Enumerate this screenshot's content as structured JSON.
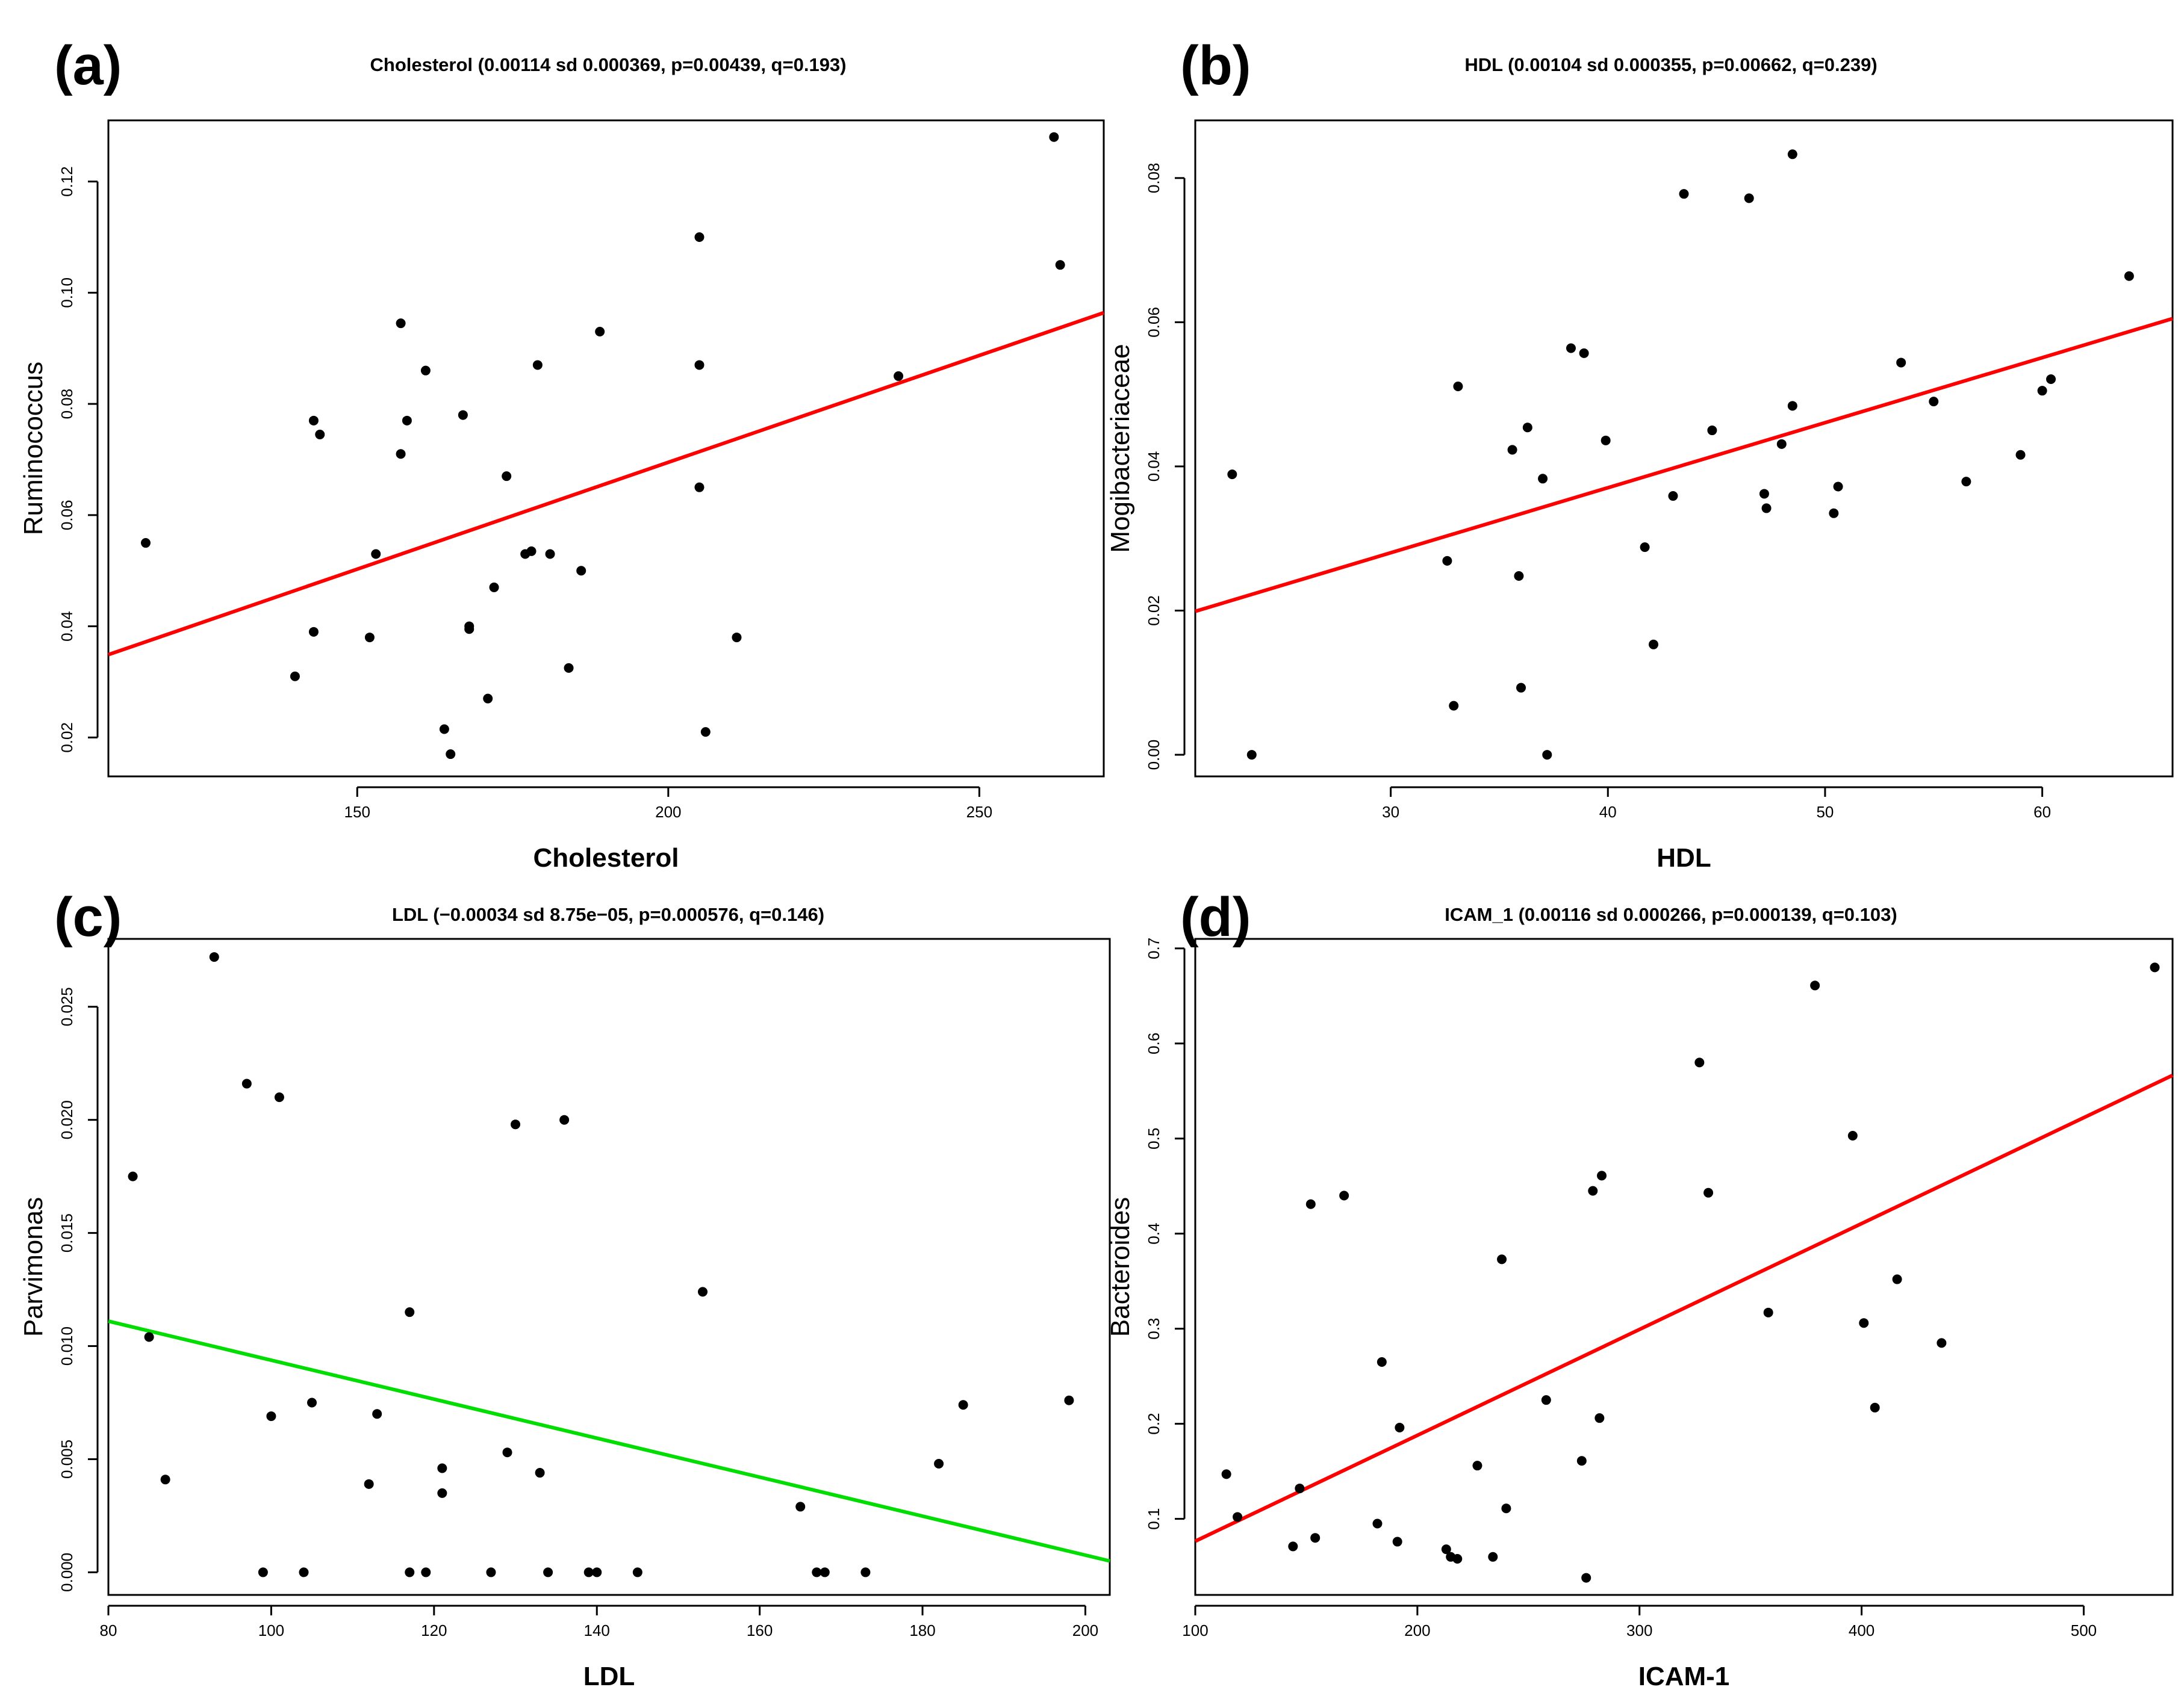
{
  "chart_data": [
    {
      "type": "scatter",
      "panel_letter": "(a)",
      "title": "Cholesterol (0.00114 sd 0.000369, p=0.00439, q=0.193)",
      "xlabel": "Cholesterol",
      "ylabel": "Ruminococcus",
      "xlim": [
        110,
        270
      ],
      "ylim": [
        0.013,
        0.131
      ],
      "xticks": [
        150,
        200,
        250
      ],
      "yticks": [
        0.02,
        0.04,
        0.06,
        0.08,
        0.1,
        0.12
      ],
      "xtick_labels": [
        "150",
        "200",
        "250"
      ],
      "ytick_labels": [
        "0.02",
        "0.04",
        "0.06",
        "0.08",
        "0.10",
        "0.12"
      ],
      "fit_line": {
        "x": [
          110,
          270
        ],
        "y": [
          0.0349,
          0.0964
        ],
        "color": "#ff0000"
      },
      "points": [
        [
          116,
          0.055
        ],
        [
          140,
          0.031
        ],
        [
          143,
          0.077
        ],
        [
          143,
          0.039
        ],
        [
          144,
          0.0745
        ],
        [
          152,
          0.038
        ],
        [
          153,
          0.053
        ],
        [
          157,
          0.0945
        ],
        [
          157,
          0.071
        ],
        [
          158,
          0.077
        ],
        [
          161,
          0.086
        ],
        [
          164,
          0.0215
        ],
        [
          165,
          0.017
        ],
        [
          167,
          0.078
        ],
        [
          168,
          0.04
        ],
        [
          168,
          0.0395
        ],
        [
          171,
          0.027
        ],
        [
          172,
          0.047
        ],
        [
          174,
          0.067
        ],
        [
          177,
          0.053
        ],
        [
          178,
          0.0535
        ],
        [
          179,
          0.087
        ],
        [
          181,
          0.053
        ],
        [
          184,
          0.0325
        ],
        [
          186,
          0.05
        ],
        [
          189,
          0.093
        ],
        [
          205,
          0.11
        ],
        [
          205,
          0.087
        ],
        [
          205,
          0.065
        ],
        [
          206,
          0.021
        ],
        [
          211,
          0.038
        ],
        [
          237,
          0.085
        ],
        [
          262,
          0.128
        ],
        [
          263,
          0.105
        ]
      ]
    },
    {
      "type": "scatter",
      "panel_letter": "(b)",
      "title": "HDL (0.00104 sd 0.000355, p=0.00662, q=0.239)",
      "xlabel": "HDL",
      "ylabel": "Mogibacteriaceae",
      "xlim": [
        21,
        66
      ],
      "ylim": [
        -0.003,
        0.088
      ],
      "xticks": [
        30,
        40,
        50,
        60
      ],
      "yticks": [
        0.0,
        0.02,
        0.04,
        0.06,
        0.08
      ],
      "xtick_labels": [
        "30",
        "40",
        "50",
        "60"
      ],
      "ytick_labels": [
        "0.00",
        "0.02",
        "0.04",
        "0.06",
        "0.08"
      ],
      "fit_line": {
        "x": [
          21,
          66
        ],
        "y": [
          0.0199,
          0.0605
        ],
        "color": "#ff0000"
      },
      "points": [
        [
          22.7,
          0.0389
        ],
        [
          23.6,
          0.0
        ],
        [
          32.6,
          0.0269
        ],
        [
          32.9,
          0.0068
        ],
        [
          33.1,
          0.0511
        ],
        [
          35.6,
          0.0423
        ],
        [
          35.9,
          0.0248
        ],
        [
          36.0,
          0.0093
        ],
        [
          36.3,
          0.0454
        ],
        [
          37.0,
          0.0383
        ],
        [
          37.2,
          0.0
        ],
        [
          38.3,
          0.0564
        ],
        [
          38.9,
          0.0557
        ],
        [
          39.9,
          0.0436
        ],
        [
          41.7,
          0.0288
        ],
        [
          42.1,
          0.0153
        ],
        [
          43.0,
          0.0359
        ],
        [
          43.5,
          0.0778
        ],
        [
          44.8,
          0.045
        ],
        [
          46.5,
          0.0772
        ],
        [
          47.2,
          0.0362
        ],
        [
          47.3,
          0.0342
        ],
        [
          48.0,
          0.0431
        ],
        [
          48.5,
          0.0484
        ],
        [
          48.5,
          0.0833
        ],
        [
          50.4,
          0.0335
        ],
        [
          50.6,
          0.0372
        ],
        [
          53.5,
          0.0544
        ],
        [
          55.0,
          0.049
        ],
        [
          56.5,
          0.0379
        ],
        [
          59.0,
          0.0416
        ],
        [
          60.0,
          0.0505
        ],
        [
          60.4,
          0.0521
        ],
        [
          64.0,
          0.0664
        ]
      ]
    },
    {
      "type": "scatter",
      "panel_letter": "(c)",
      "title": "LDL (−0.00034 sd 8.75e−05, p=0.000576, q=0.146)",
      "xlabel": "LDL",
      "ylabel": "Parvimonas",
      "xlim": [
        80,
        203
      ],
      "ylim": [
        -0.001,
        0.028
      ],
      "xticks": [
        80,
        100,
        120,
        140,
        160,
        180,
        200
      ],
      "yticks": [
        0.0,
        0.005,
        0.01,
        0.015,
        0.02,
        0.025
      ],
      "xtick_labels": [
        "80",
        "100",
        "120",
        "140",
        "160",
        "180",
        "200"
      ],
      "ytick_labels": [
        "0.000",
        "0.005",
        "0.010",
        "0.015",
        "0.020",
        "0.025"
      ],
      "fit_line": {
        "x": [
          80,
          203
        ],
        "y": [
          0.0111,
          0.0005
        ],
        "color": "#00dd00"
      },
      "points": [
        [
          83,
          0.0175
        ],
        [
          85,
          0.0104
        ],
        [
          87,
          0.0041
        ],
        [
          93,
          0.0272
        ],
        [
          97,
          0.0216
        ],
        [
          99,
          0.0
        ],
        [
          100,
          0.0069
        ],
        [
          101,
          0.021
        ],
        [
          104,
          0.0
        ],
        [
          105,
          0.0075
        ],
        [
          112,
          0.0039
        ],
        [
          113,
          0.007
        ],
        [
          117,
          0.0115
        ],
        [
          117,
          0.0
        ],
        [
          119,
          0.0
        ],
        [
          121,
          0.0046
        ],
        [
          121,
          0.0035
        ],
        [
          127,
          0.0
        ],
        [
          129,
          0.0053
        ],
        [
          130,
          0.0198
        ],
        [
          133,
          0.0044
        ],
        [
          134,
          0.0
        ],
        [
          136,
          0.02
        ],
        [
          139,
          0.0
        ],
        [
          140,
          0.0
        ],
        [
          145,
          0.0
        ],
        [
          153,
          0.0124
        ],
        [
          165,
          0.0029
        ],
        [
          167,
          0.0
        ],
        [
          168,
          0.0
        ],
        [
          173,
          0.0
        ],
        [
          182,
          0.0048
        ],
        [
          185,
          0.0074
        ],
        [
          198,
          0.0076
        ]
      ]
    },
    {
      "type": "scatter",
      "panel_letter": "(d)",
      "title": "ICAM_1 (0.00116 sd 0.000266, p=0.000139, q=0.103)",
      "xlabel": "ICAM-1",
      "ylabel": "Bacteroides",
      "xlim": [
        100,
        540
      ],
      "ylim": [
        0.02,
        0.71
      ],
      "xticks": [
        100,
        200,
        300,
        400,
        500
      ],
      "yticks": [
        0.1,
        0.2,
        0.3,
        0.4,
        0.5,
        0.6,
        0.7
      ],
      "xtick_labels": [
        "100",
        "200",
        "300",
        "400",
        "500"
      ],
      "ytick_labels": [
        "0.1",
        "0.2",
        "0.3",
        "0.4",
        "0.5",
        "0.6",
        "0.7"
      ],
      "fit_line": {
        "x": [
          100,
          540
        ],
        "y": [
          0.0765,
          0.5665
        ],
        "color": "#ff0000"
      },
      "points": [
        [
          114,
          0.147
        ],
        [
          119,
          0.102
        ],
        [
          144,
          0.071
        ],
        [
          147,
          0.132
        ],
        [
          152,
          0.431
        ],
        [
          154,
          0.08
        ],
        [
          167,
          0.44
        ],
        [
          182,
          0.095
        ],
        [
          184,
          0.265
        ],
        [
          191,
          0.076
        ],
        [
          192,
          0.196
        ],
        [
          213,
          0.068
        ],
        [
          215,
          0.06
        ],
        [
          218,
          0.058
        ],
        [
          227,
          0.156
        ],
        [
          234,
          0.06
        ],
        [
          238,
          0.373
        ],
        [
          240,
          0.111
        ],
        [
          258,
          0.225
        ],
        [
          274,
          0.161
        ],
        [
          276,
          0.038
        ],
        [
          279,
          0.445
        ],
        [
          282,
          0.206
        ],
        [
          283,
          0.461
        ],
        [
          327,
          0.58
        ],
        [
          331,
          0.443
        ],
        [
          358,
          0.317
        ],
        [
          379,
          0.661
        ],
        [
          396,
          0.503
        ],
        [
          401,
          0.306
        ],
        [
          406,
          0.217
        ],
        [
          416,
          0.352
        ],
        [
          436,
          0.285
        ],
        [
          532,
          0.68
        ]
      ]
    }
  ]
}
